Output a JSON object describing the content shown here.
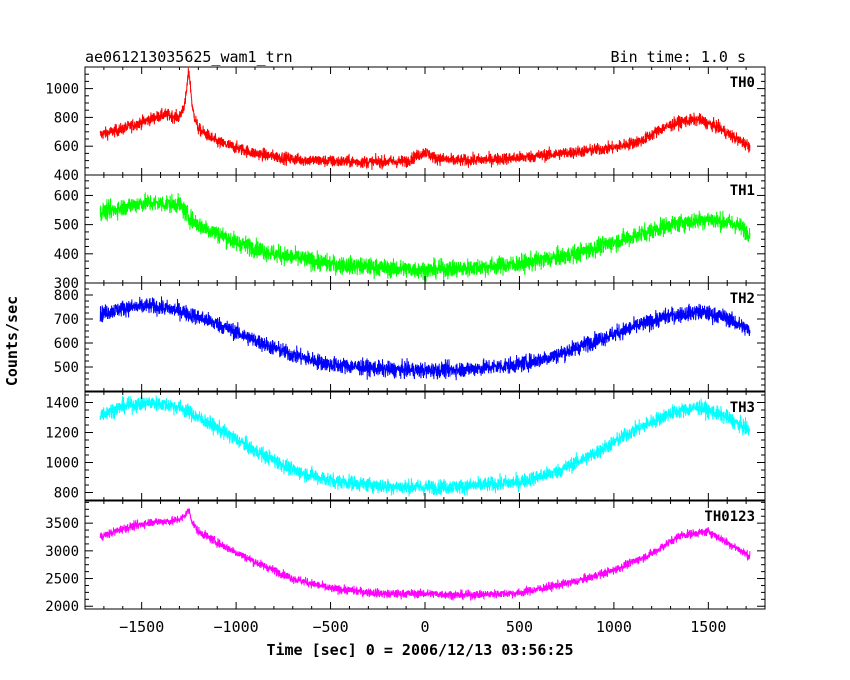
{
  "chart_data": {
    "type": "line",
    "title": "ae061213035625_wam1_trn",
    "bin_label": "Bin time: 1.0 s",
    "xlabel": "Time [sec] 0 = 2006/12/13 03:56:25",
    "ylabel": "Counts/sec",
    "xlim": [
      -1800,
      1800
    ],
    "x_ticks": [
      -1500,
      -1000,
      -500,
      0,
      500,
      1000,
      1500
    ],
    "x_tick_labels": [
      "−1500",
      "−1000",
      "−500",
      "0",
      "500",
      "1000",
      "1500"
    ],
    "x_range": [
      -1720,
      1720
    ],
    "grid": false,
    "legend": "none",
    "panels": [
      {
        "name": "TH0",
        "color": "#ff0000",
        "ylim": [
          400,
          1150
        ],
        "y_ticks": [
          400,
          600,
          800,
          1000
        ],
        "y_tick_labels": [
          "400",
          "600",
          "800",
          "1000"
        ],
        "noise": 38,
        "profile_x": [
          -1720,
          -1600,
          -1450,
          -1380,
          -1300,
          -1270,
          -1250,
          -1230,
          -1200,
          -1100,
          -900,
          -700,
          -500,
          -300,
          -100,
          0,
          50,
          150,
          300,
          500,
          800,
          1000,
          1150,
          1250,
          1350,
          1450,
          1550,
          1650,
          1720
        ],
        "profile_y": [
          680,
          720,
          790,
          820,
          800,
          900,
          1130,
          850,
          720,
          630,
          550,
          510,
          495,
          490,
          495,
          560,
          520,
          500,
          505,
          520,
          560,
          590,
          640,
          720,
          770,
          785,
          730,
          650,
          600
        ]
      },
      {
        "name": "TH1",
        "color": "#00ff00",
        "ylim": [
          300,
          670
        ],
        "y_ticks": [
          300,
          400,
          500,
          600
        ],
        "y_tick_labels": [
          "300",
          "400",
          "500",
          "600"
        ],
        "noise": 28,
        "profile_x": [
          -1720,
          -1500,
          -1300,
          -1250,
          -1200,
          -1000,
          -800,
          -500,
          -200,
          0,
          200,
          500,
          800,
          1100,
          1300,
          1500,
          1650,
          1720
        ],
        "profile_y": [
          540,
          575,
          570,
          525,
          500,
          440,
          400,
          365,
          350,
          345,
          350,
          365,
          400,
          460,
          500,
          520,
          500,
          470
        ]
      },
      {
        "name": "TH2",
        "color": "#0000ff",
        "ylim": [
          400,
          850
        ],
        "y_ticks": [
          500,
          600,
          700,
          800
        ],
        "y_tick_labels": [
          "500",
          "600",
          "700",
          "800"
        ],
        "noise": 30,
        "profile_x": [
          -1720,
          -1600,
          -1450,
          -1300,
          -1100,
          -900,
          -700,
          -500,
          -200,
          0,
          200,
          500,
          700,
          900,
          1100,
          1300,
          1450,
          1600,
          1720
        ],
        "profile_y": [
          720,
          745,
          755,
          735,
          680,
          610,
          550,
          510,
          490,
          485,
          490,
          510,
          550,
          610,
          665,
          715,
          730,
          705,
          650
        ]
      },
      {
        "name": "TH3",
        "color": "#00ffff",
        "ylim": [
          750,
          1470
        ],
        "y_ticks": [
          800,
          1000,
          1200,
          1400
        ],
        "y_tick_labels": [
          "800",
          "1000",
          "1200",
          "1400"
        ],
        "noise": 45,
        "profile_x": [
          -1720,
          -1600,
          -1450,
          -1300,
          -1100,
          -900,
          -700,
          -500,
          -200,
          0,
          200,
          500,
          700,
          900,
          1100,
          1300,
          1450,
          1600,
          1720
        ],
        "profile_y": [
          1320,
          1375,
          1400,
          1370,
          1230,
          1080,
          950,
          880,
          840,
          835,
          840,
          870,
          940,
          1060,
          1210,
          1330,
          1370,
          1300,
          1210
        ]
      },
      {
        "name": "TH0123",
        "color": "#ff00ff",
        "ylim": [
          1950,
          3900
        ],
        "y_ticks": [
          2000,
          2500,
          3000,
          3500
        ],
        "y_tick_labels": [
          "2000",
          "2500",
          "3000",
          "3500"
        ],
        "noise": 70,
        "profile_x": [
          -1720,
          -1600,
          -1450,
          -1330,
          -1280,
          -1250,
          -1230,
          -1200,
          -1100,
          -900,
          -700,
          -500,
          -200,
          0,
          200,
          500,
          800,
          1000,
          1200,
          1350,
          1500,
          1650,
          1720
        ],
        "profile_y": [
          3250,
          3400,
          3520,
          3540,
          3600,
          3740,
          3500,
          3350,
          3150,
          2800,
          2500,
          2320,
          2220,
          2230,
          2200,
          2240,
          2450,
          2650,
          2950,
          3280,
          3350,
          3050,
          2900
        ]
      }
    ]
  }
}
